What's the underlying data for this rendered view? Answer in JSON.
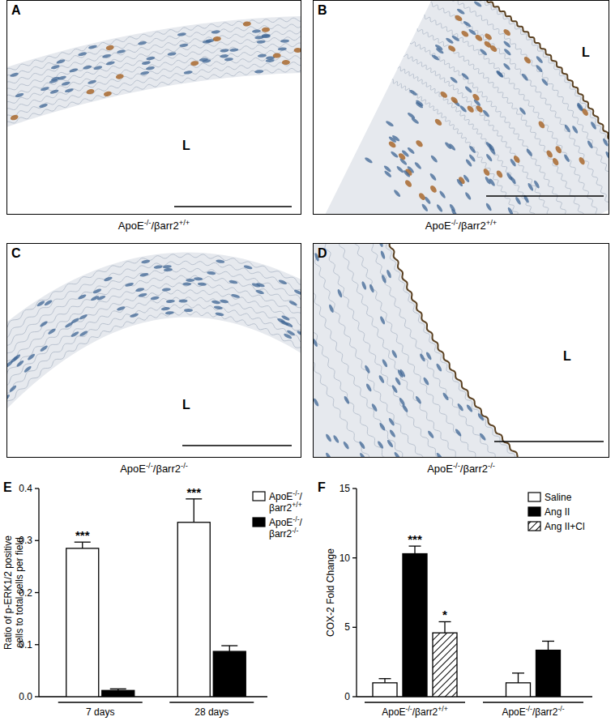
{
  "panels": [
    {
      "letter": "A",
      "caption": "ApoE-/-/βarr2+/+",
      "lumen": "L"
    },
    {
      "letter": "B",
      "caption": "ApoE-/-/βarr2+/+",
      "lumen": "L"
    },
    {
      "letter": "C",
      "caption": "ApoE-/-/βarr2-/-",
      "lumen": "L"
    },
    {
      "letter": "D",
      "caption": "ApoE-/-/βarr2-/-",
      "lumen": "L"
    }
  ],
  "chart_data": [
    {
      "type": "bar",
      "panel": "E",
      "y_label": [
        "Ratio of p-ERK1/2 positive",
        "cells to total cells per field"
      ],
      "categories": [
        "7 days",
        "28 days"
      ],
      "ylim": [
        0,
        0.4
      ],
      "yticks": [
        {
          "value": 0,
          "label": "0.0"
        },
        {
          "value": 0.1,
          "label": "0.1"
        },
        {
          "value": 0.2,
          "label": "0.2"
        },
        {
          "value": 0.3,
          "label": "0.3"
        },
        {
          "value": 0.4,
          "label": "0.4"
        }
      ],
      "legend": "top-right",
      "series": [
        {
          "name": "ApoE-/-/βarr2+/+",
          "color": "#ffffff",
          "values": [
            0.285,
            0.335
          ],
          "errors": [
            0.012,
            0.045
          ],
          "significance": [
            "***",
            "***"
          ]
        },
        {
          "name": "ApoE-/-/βarr2-/-",
          "color": "#000000",
          "values": [
            0.012,
            0.087
          ],
          "errors": [
            0.003,
            0.011
          ],
          "significance": [
            null,
            null
          ]
        }
      ]
    },
    {
      "type": "bar",
      "panel": "F",
      "y_label": "COX-2 Fold Change",
      "categories": [
        "ApoE-/-/βarr2+/+",
        "ApoE-/-/βarr2-/-"
      ],
      "ylim": [
        0,
        15
      ],
      "yticks": [
        0,
        5,
        10,
        15
      ],
      "legend": "top-right",
      "series": [
        {
          "name": "Saline",
          "color": "#ffffff",
          "values": [
            1.0,
            1.0
          ],
          "errors": [
            0.3,
            0.7
          ],
          "significance": [
            null,
            null
          ]
        },
        {
          "name": "Ang II",
          "color": "#000000",
          "values": [
            10.3,
            3.35
          ],
          "errors": [
            0.55,
            0.65
          ],
          "significance": [
            "***",
            null
          ]
        },
        {
          "name": "Ang II+Cl",
          "color": "#ffffff",
          "marker": "hatched",
          "values": [
            4.6,
            null
          ],
          "errors": [
            0.8,
            null
          ],
          "significance": [
            "*",
            null
          ]
        }
      ]
    }
  ]
}
